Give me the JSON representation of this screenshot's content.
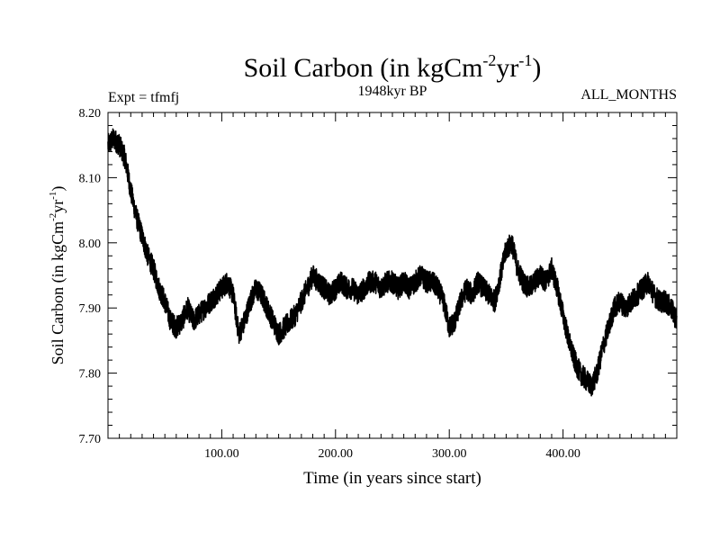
{
  "chart_data": {
    "type": "line",
    "title": "Soil Carbon (in kgCm",
    "title_exp1": "-2",
    "title_mid": "yr",
    "title_exp2": "-1",
    "title_end": ")",
    "subtitle_left": "Expt = tfmfj",
    "subtitle_center": "1948kyr BP",
    "subtitle_right": "ALL_MONTHS",
    "xlabel": "Time (in years since start)",
    "ylabel": "Soil Carbon (in kgCm",
    "ylabel_exp1": "-2",
    "ylabel_mid": "yr",
    "ylabel_exp2": "-1",
    "ylabel_end": ")",
    "xlim": [
      0,
      500
    ],
    "ylim": [
      7.7,
      8.2
    ],
    "x_major_ticks": [
      100,
      200,
      300,
      400
    ],
    "x_tick_labels": [
      "100.00",
      "200.00",
      "300.00",
      "400.00"
    ],
    "y_major_ticks": [
      7.7,
      7.8,
      7.9,
      8.0,
      8.1,
      8.2
    ],
    "y_tick_labels": [
      "7.70",
      "7.80",
      "7.90",
      "8.00",
      "8.10",
      "8.20"
    ],
    "line_color": "#000000",
    "series": [
      {
        "name": "Soil Carbon",
        "x": [
          0,
          5,
          10,
          15,
          20,
          25,
          30,
          35,
          40,
          45,
          50,
          55,
          60,
          65,
          70,
          75,
          80,
          85,
          90,
          95,
          100,
          105,
          110,
          115,
          120,
          125,
          130,
          135,
          140,
          145,
          150,
          155,
          160,
          165,
          170,
          175,
          180,
          185,
          190,
          195,
          200,
          205,
          210,
          215,
          220,
          225,
          230,
          235,
          240,
          245,
          250,
          255,
          260,
          265,
          270,
          275,
          280,
          285,
          290,
          295,
          300,
          305,
          310,
          315,
          320,
          325,
          330,
          335,
          340,
          345,
          350,
          355,
          360,
          365,
          370,
          375,
          380,
          385,
          390,
          395,
          400,
          405,
          410,
          415,
          420,
          425,
          430,
          435,
          440,
          445,
          450,
          455,
          460,
          465,
          470,
          475,
          480,
          485,
          490,
          495,
          500
        ],
        "values": [
          8.15,
          8.16,
          8.15,
          8.13,
          8.08,
          8.04,
          8.01,
          7.98,
          7.96,
          7.93,
          7.91,
          7.88,
          7.87,
          7.88,
          7.9,
          7.88,
          7.89,
          7.9,
          7.91,
          7.92,
          7.93,
          7.94,
          7.92,
          7.86,
          7.88,
          7.91,
          7.93,
          7.92,
          7.9,
          7.88,
          7.86,
          7.87,
          7.88,
          7.89,
          7.91,
          7.93,
          7.95,
          7.94,
          7.93,
          7.92,
          7.93,
          7.94,
          7.93,
          7.93,
          7.92,
          7.93,
          7.94,
          7.94,
          7.93,
          7.94,
          7.94,
          7.93,
          7.94,
          7.93,
          7.94,
          7.95,
          7.94,
          7.94,
          7.93,
          7.91,
          7.87,
          7.88,
          7.91,
          7.93,
          7.92,
          7.94,
          7.93,
          7.92,
          7.91,
          7.95,
          7.99,
          8.0,
          7.96,
          7.94,
          7.93,
          7.94,
          7.95,
          7.94,
          7.96,
          7.93,
          7.89,
          7.85,
          7.82,
          7.8,
          7.79,
          7.78,
          7.8,
          7.84,
          7.87,
          7.9,
          7.91,
          7.9,
          7.91,
          7.92,
          7.93,
          7.94,
          7.92,
          7.91,
          7.91,
          7.9,
          7.88
        ]
      }
    ]
  }
}
